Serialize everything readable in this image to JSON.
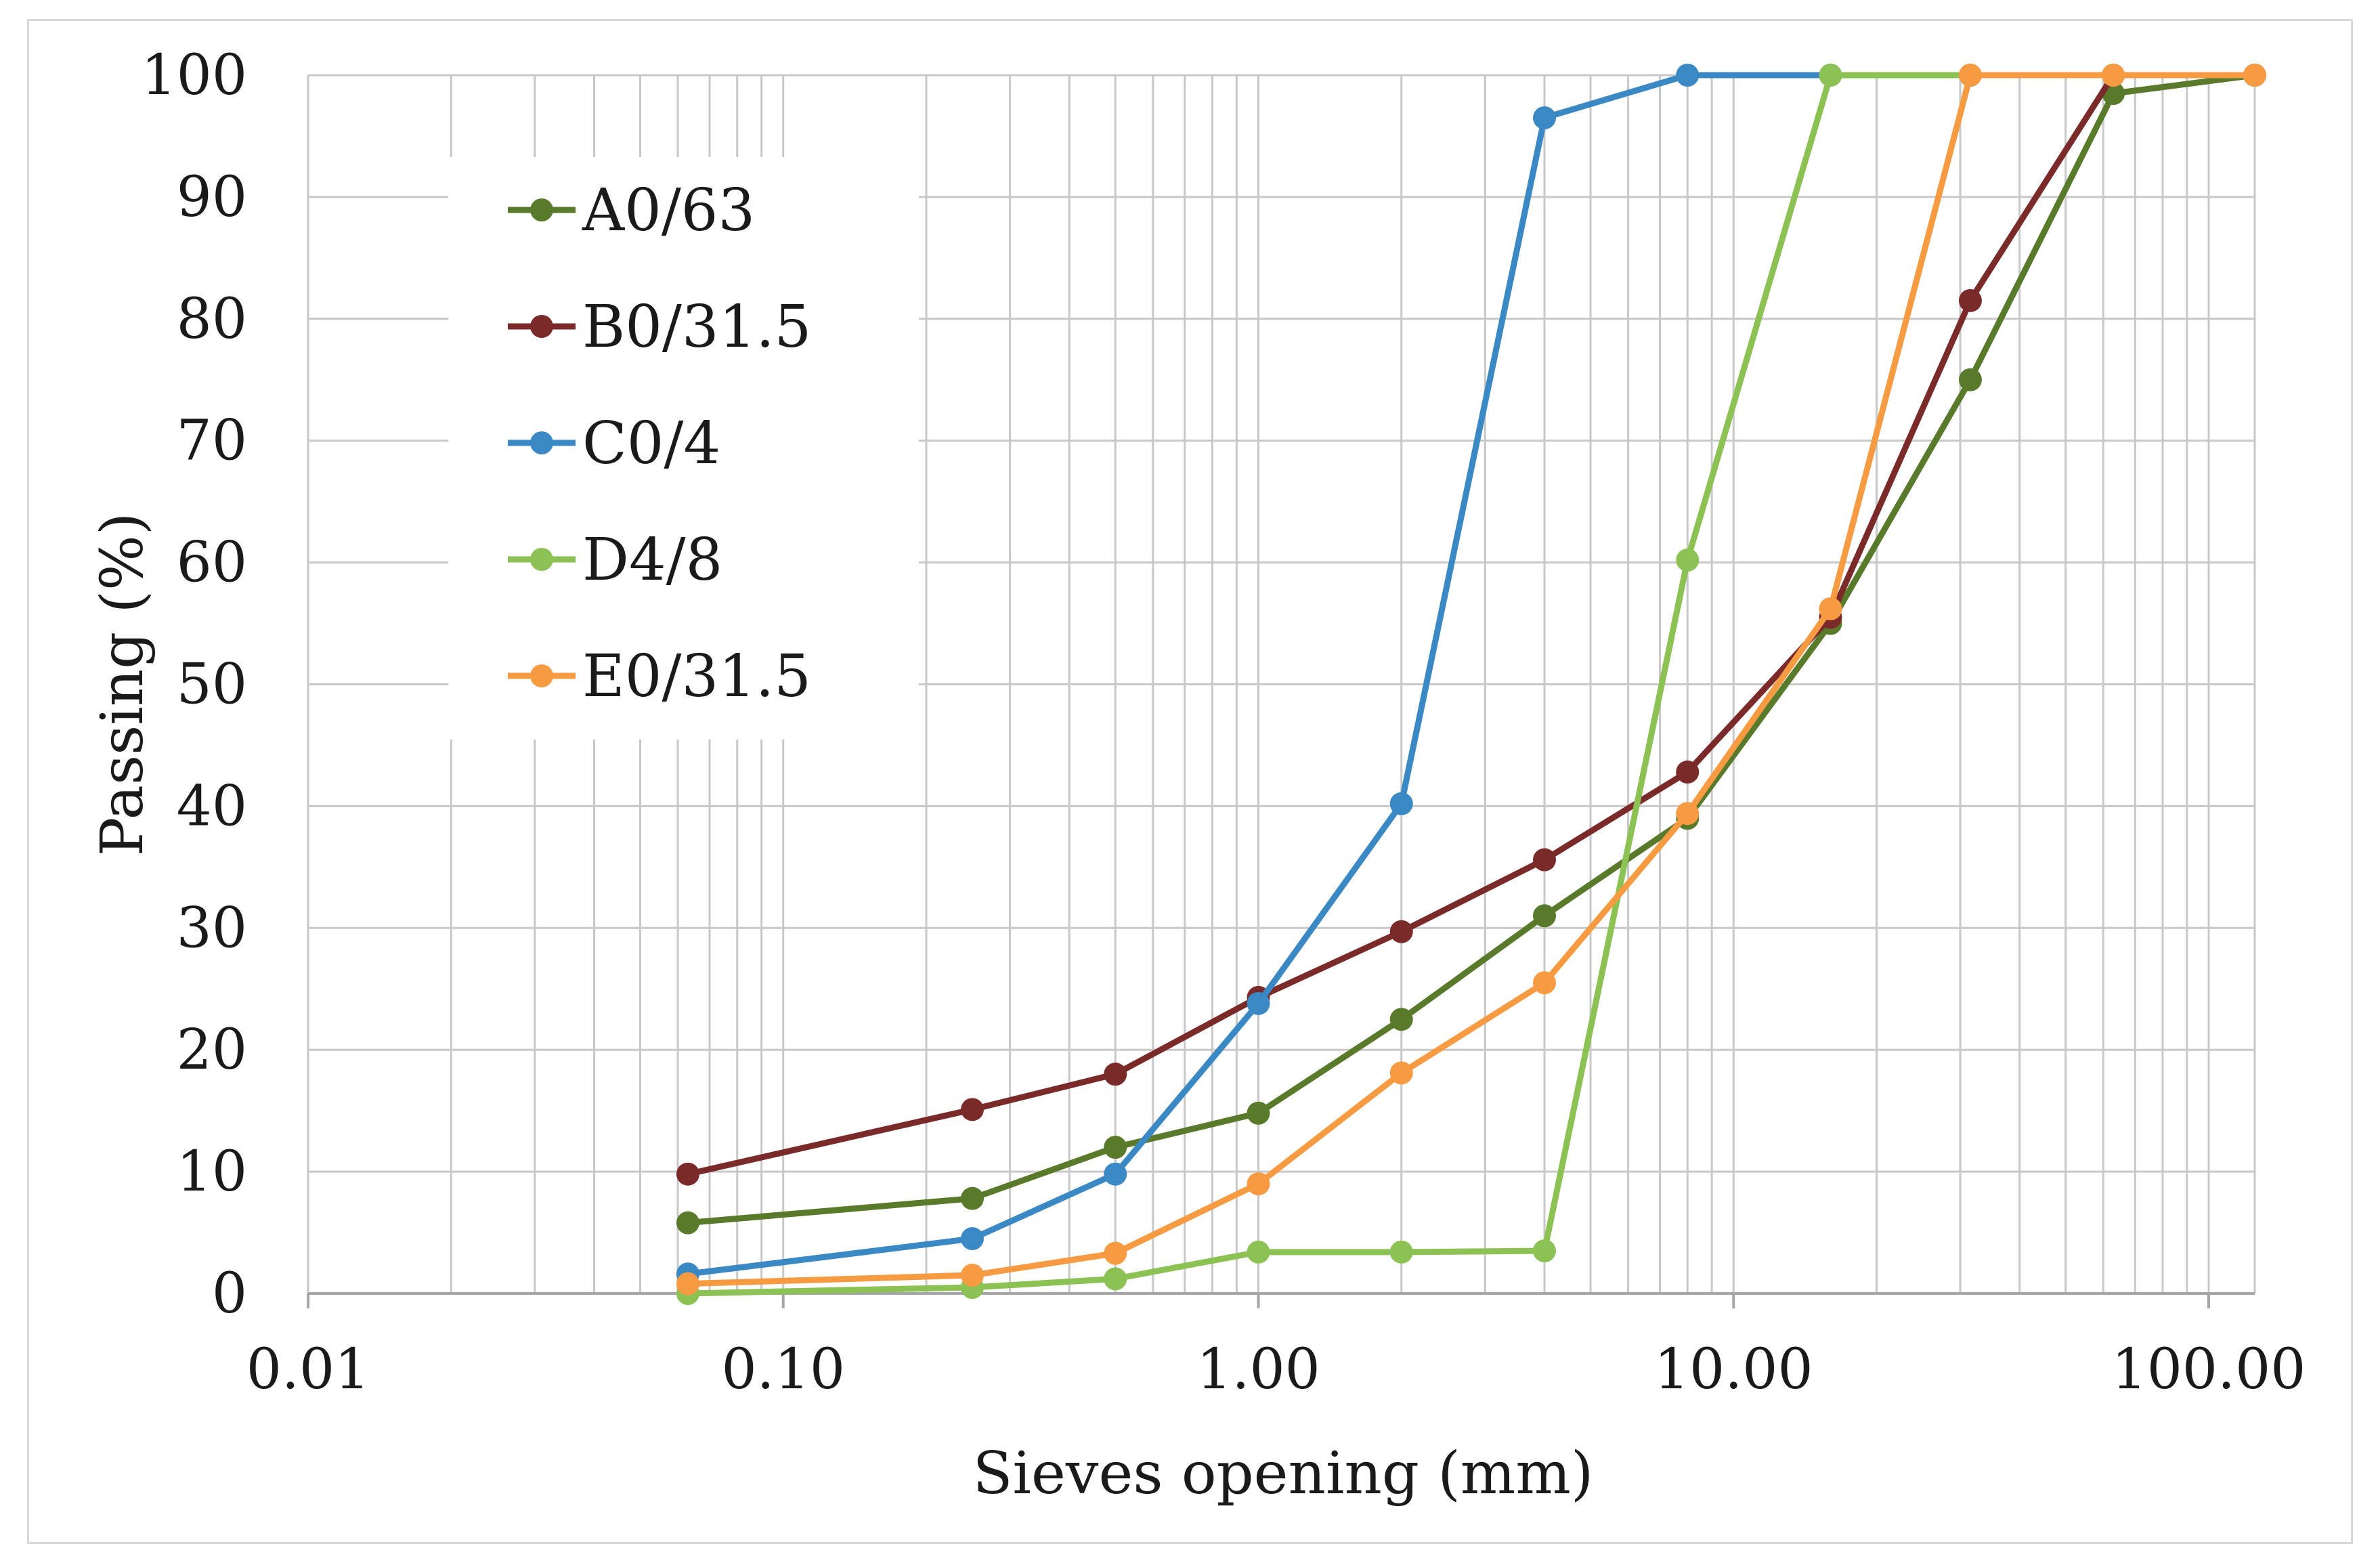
{
  "chart_data": {
    "type": "line",
    "title": "",
    "xlabel": "Sieves opening (mm)",
    "ylabel": "Passing (%)",
    "x_scale": "log",
    "xlim": [
      0.01,
      125
    ],
    "ylim": [
      0,
      100
    ],
    "x_ticks": [
      0.01,
      0.1,
      1,
      10,
      100
    ],
    "x_tick_labels": [
      "0.01",
      "0.10",
      "1.00",
      "10.00",
      "100.00"
    ],
    "y_ticks": [
      0,
      10,
      20,
      30,
      40,
      50,
      60,
      70,
      80,
      90,
      100
    ],
    "y_tick_labels": [
      "0",
      "10",
      "20",
      "30",
      "40",
      "50",
      "60",
      "70",
      "80",
      "90",
      "100"
    ],
    "grid": true,
    "legend_position": "upper-left inside",
    "series": [
      {
        "name": "A0/63",
        "color": "#5a7a2b",
        "x": [
          0.063,
          0.25,
          0.5,
          1,
          2,
          4,
          8,
          16,
          31.5,
          63,
          125
        ],
        "y": [
          5.8,
          7.8,
          12,
          14.8,
          22.5,
          31,
          39,
          55,
          75,
          98.5,
          100
        ]
      },
      {
        "name": "B0/31.5",
        "color": "#7b2a2a",
        "x": [
          0.063,
          0.25,
          0.5,
          1,
          2,
          4,
          8,
          16,
          31.5,
          63,
          125
        ],
        "y": [
          9.8,
          15.1,
          18,
          24.3,
          29.7,
          35.6,
          42.8,
          55.5,
          81.5,
          100,
          100
        ]
      },
      {
        "name": "C0/4",
        "color": "#3a88c4",
        "x": [
          0.063,
          0.25,
          0.5,
          1,
          2,
          4,
          8,
          16,
          31.5,
          63,
          125
        ],
        "y": [
          1.6,
          4.5,
          9.8,
          23.8,
          40.2,
          96.5,
          100,
          100,
          100,
          100,
          100
        ]
      },
      {
        "name": "D4/8",
        "color": "#8cc153",
        "x": [
          0.063,
          0.25,
          0.5,
          1,
          2,
          4,
          8,
          16,
          31.5,
          63,
          125
        ],
        "y": [
          0,
          0.5,
          1.2,
          3.4,
          3.4,
          3.5,
          60.2,
          100,
          100,
          100,
          100
        ]
      },
      {
        "name": "E0/31.5",
        "color": "#f79b42",
        "x": [
          0.063,
          0.25,
          0.5,
          1,
          2,
          4,
          8,
          16,
          31.5,
          63,
          125
        ],
        "y": [
          0.8,
          1.5,
          3.3,
          9,
          18.1,
          25.5,
          39.4,
          56.2,
          100,
          100,
          100
        ]
      }
    ]
  }
}
